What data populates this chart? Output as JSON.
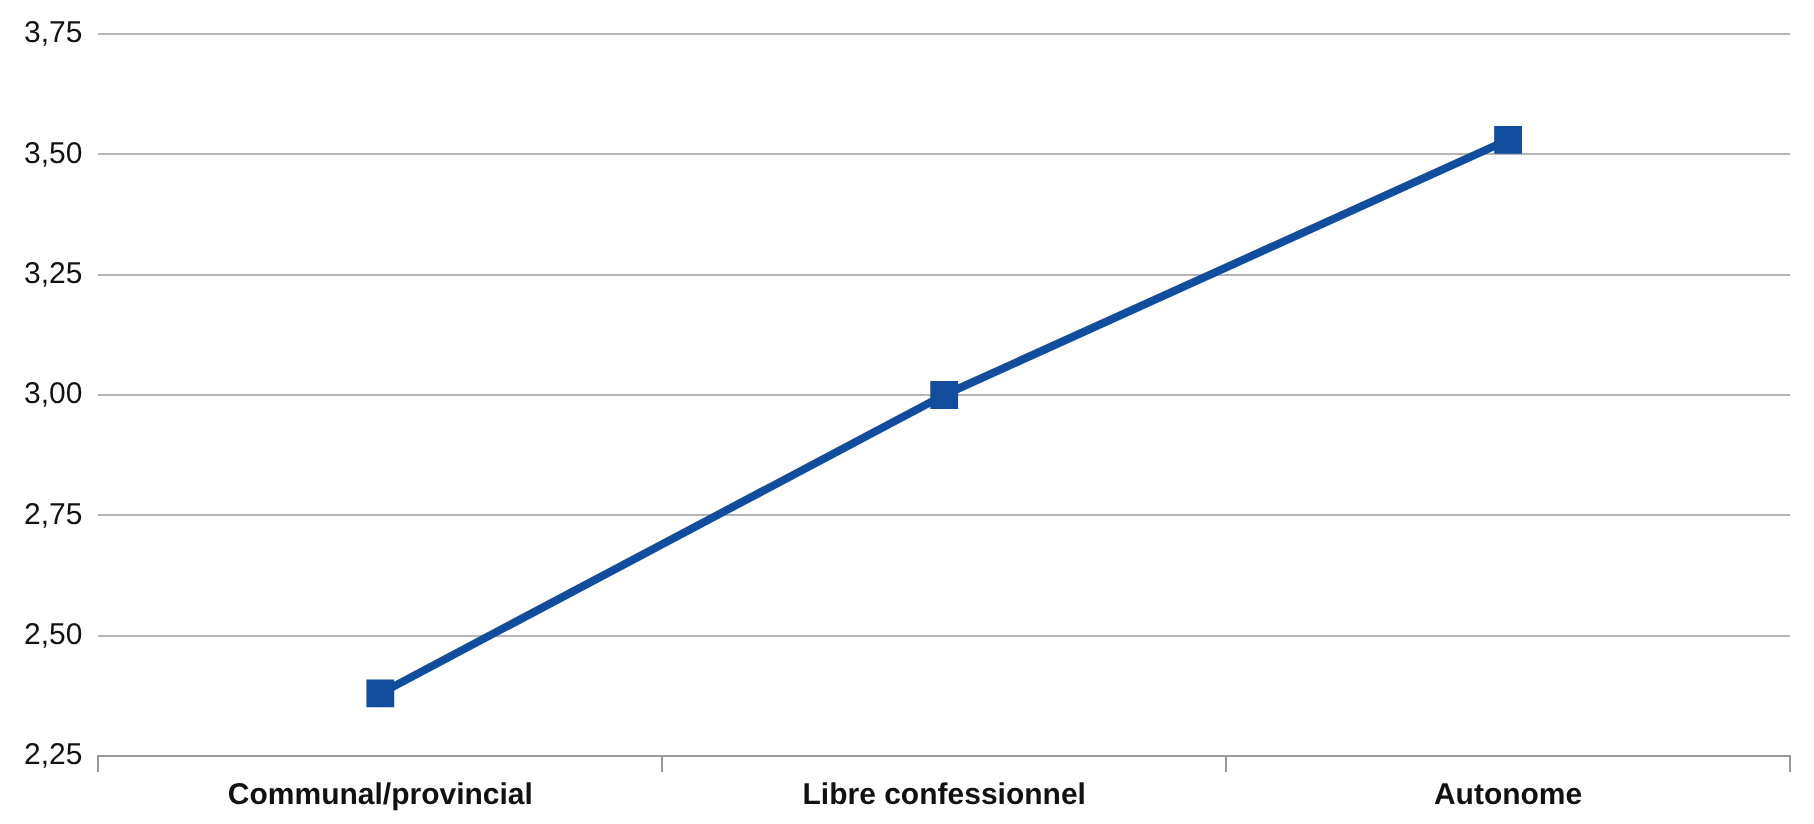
{
  "chart_data": {
    "type": "line",
    "categories": [
      "Communal/provincial",
      "Libre confessionnel",
      "Autonome"
    ],
    "series": [
      {
        "color": "#114d9c",
        "values": [
          2.38,
          3.0,
          3.53
        ]
      }
    ],
    "ylim": [
      2.25,
      3.75
    ],
    "yticks": [
      {
        "value": 2.25,
        "label": "2,25"
      },
      {
        "value": 2.5,
        "label": "2,50"
      },
      {
        "value": 2.75,
        "label": "2,75"
      },
      {
        "value": 3,
        "label": "3,00"
      },
      {
        "value": 3.25,
        "label": "3,25"
      },
      {
        "value": 3.5,
        "label": "3,50"
      },
      {
        "value": 3.75,
        "label": "3,75"
      }
    ],
    "grid": "y",
    "legend": false,
    "marker": "square",
    "line_style": "solid"
  }
}
